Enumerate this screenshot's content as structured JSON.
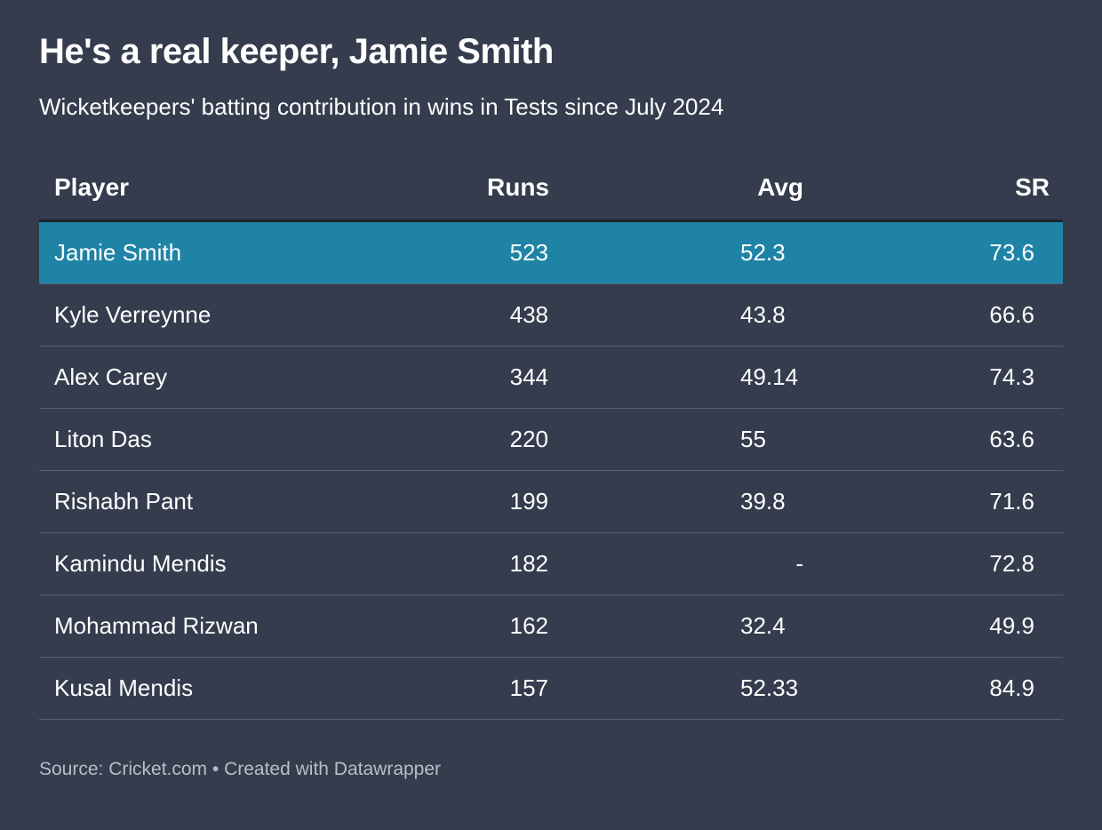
{
  "header": {
    "title": "He's a real keeper, Jamie Smith",
    "subtitle": "Wicketkeepers' batting contribution in wins in Tests since July 2024"
  },
  "table": {
    "columns": [
      "Player",
      "Runs",
      "Avg",
      "SR"
    ],
    "rows": [
      [
        "Jamie Smith",
        523,
        52.3,
        73.6
      ],
      [
        "Kyle Verreynne",
        438,
        43.8,
        66.6
      ],
      [
        "Alex Carey",
        344,
        49.14,
        74.3
      ],
      [
        "Liton Das",
        220,
        55,
        63.6
      ],
      [
        "Rishabh Pant",
        199,
        39.8,
        71.6
      ],
      [
        "Kamindu Mendis",
        182,
        "-",
        72.8
      ],
      [
        "Mohammad Rizwan",
        162,
        32.4,
        49.9
      ],
      [
        "Kusal Mendis",
        157,
        52.33,
        84.9
      ]
    ]
  },
  "footer": {
    "source": "Source: Cricket.com • Created with Datawrapper"
  }
}
